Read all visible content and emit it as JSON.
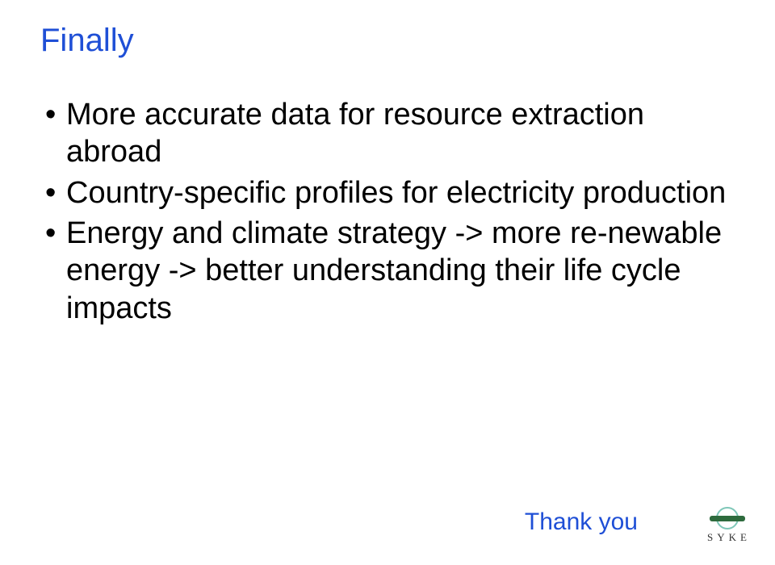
{
  "title": {
    "text": "Finally",
    "color": "#1f4fd6",
    "fontsize": 40
  },
  "body": {
    "text_color": "#000000",
    "fontsize": 38,
    "group1": [
      "More accurate data for resource extraction abroad",
      "Country-specific profiles for electricity production"
    ],
    "group2": [
      "Energy and climate strategy -> more re-newable energy -> better understanding their life cycle impacts"
    ]
  },
  "footer": {
    "thank_you": "Thank you",
    "thank_you_color": "#1f4fd6",
    "thank_you_fontsize": 30
  },
  "logo": {
    "text": "SYKE",
    "ring_color": "#7fc7b8",
    "bar_color": "#2e6b3d",
    "text_color": "#333333"
  },
  "background_color": "#ffffff"
}
